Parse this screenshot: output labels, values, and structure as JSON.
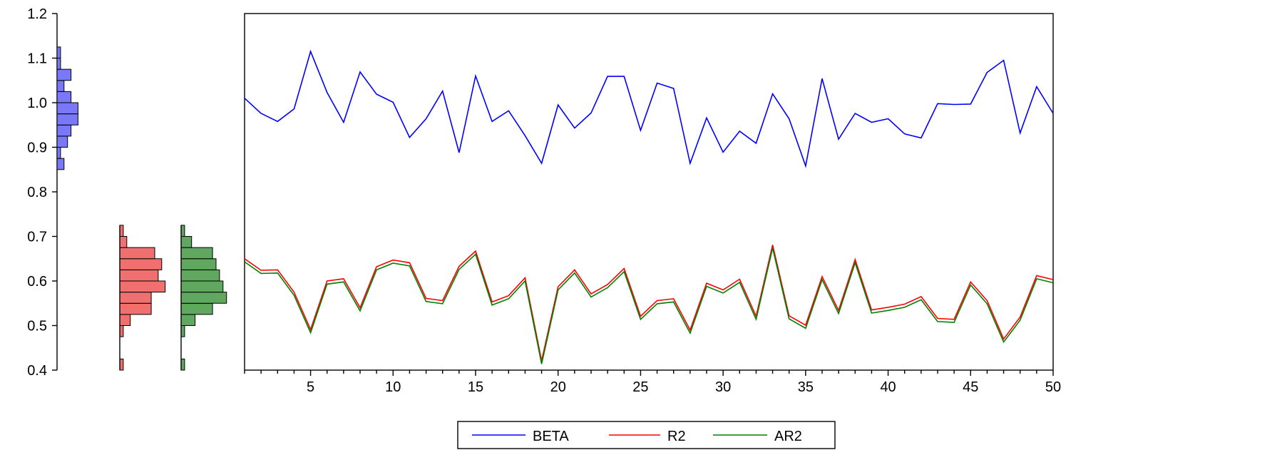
{
  "chart_data": {
    "type": "line",
    "x": [
      1,
      2,
      3,
      4,
      5,
      6,
      7,
      8,
      9,
      10,
      11,
      12,
      13,
      14,
      15,
      16,
      17,
      18,
      19,
      20,
      21,
      22,
      23,
      24,
      25,
      26,
      27,
      28,
      29,
      30,
      31,
      32,
      33,
      34,
      35,
      36,
      37,
      38,
      39,
      40,
      41,
      42,
      43,
      44,
      45,
      46,
      47,
      48,
      49,
      50
    ],
    "xticks": [
      5,
      10,
      15,
      20,
      25,
      30,
      35,
      40,
      45,
      50
    ],
    "xlim": [
      1,
      50
    ],
    "ylim": [
      0.4,
      1.2
    ],
    "yticks": [
      0.4,
      0.5,
      0.6,
      0.7,
      0.8,
      0.9,
      1.0,
      1.1,
      1.2
    ],
    "ytick_labels": [
      "0.4",
      "0.5",
      "0.6",
      "0.7",
      "0.8",
      "0.9",
      "1.0",
      "1.1",
      "1.2"
    ],
    "grid": false,
    "legend_position": "bottom-center",
    "series": [
      {
        "name": "BETA",
        "color": "#0000ff",
        "values": [
          1.01,
          0.976,
          0.958,
          0.986,
          1.115,
          1.023,
          0.956,
          1.069,
          1.019,
          1.001,
          0.922,
          0.964,
          1.026,
          0.888,
          1.06,
          0.958,
          0.982,
          0.926,
          0.864,
          0.995,
          0.943,
          0.977,
          1.059,
          1.059,
          0.938,
          1.044,
          1.032,
          0.864,
          0.966,
          0.889,
          0.936,
          0.909,
          1.02,
          0.964,
          0.858,
          1.054,
          0.918,
          0.976,
          0.956,
          0.964,
          0.93,
          0.921,
          0.998,
          0.996,
          0.997,
          1.068,
          1.095,
          0.932,
          1.036,
          0.976
        ]
      },
      {
        "name": "R2",
        "color": "#ff0000",
        "values": [
          0.65,
          0.624,
          0.625,
          0.575,
          0.491,
          0.6,
          0.605,
          0.54,
          0.632,
          0.647,
          0.641,
          0.561,
          0.556,
          0.633,
          0.667,
          0.553,
          0.567,
          0.607,
          0.421,
          0.587,
          0.625,
          0.571,
          0.592,
          0.628,
          0.521,
          0.556,
          0.56,
          0.49,
          0.595,
          0.58,
          0.604,
          0.521,
          0.681,
          0.522,
          0.501,
          0.61,
          0.534,
          0.648,
          0.535,
          0.541,
          0.548,
          0.565,
          0.516,
          0.514,
          0.598,
          0.556,
          0.47,
          0.519,
          0.612,
          0.603
        ]
      },
      {
        "name": "AR2",
        "color": "#008000",
        "values": [
          0.643,
          0.617,
          0.618,
          0.568,
          0.484,
          0.593,
          0.598,
          0.533,
          0.625,
          0.64,
          0.634,
          0.554,
          0.549,
          0.626,
          0.66,
          0.546,
          0.56,
          0.6,
          0.414,
          0.58,
          0.618,
          0.564,
          0.585,
          0.621,
          0.514,
          0.549,
          0.553,
          0.483,
          0.588,
          0.573,
          0.597,
          0.514,
          0.674,
          0.515,
          0.494,
          0.603,
          0.527,
          0.641,
          0.528,
          0.534,
          0.541,
          0.558,
          0.509,
          0.507,
          0.591,
          0.549,
          0.463,
          0.512,
          0.605,
          0.596
        ]
      }
    ],
    "histograms": [
      {
        "series": "BETA",
        "color": "#7878f8",
        "bin_width": 0.025,
        "bins": [
          {
            "lo": 0.85,
            "count": 2
          },
          {
            "lo": 0.875,
            "count": 1
          },
          {
            "lo": 0.9,
            "count": 3
          },
          {
            "lo": 0.925,
            "count": 4
          },
          {
            "lo": 0.95,
            "count": 6
          },
          {
            "lo": 0.975,
            "count": 6
          },
          {
            "lo": 1.0,
            "count": 4
          },
          {
            "lo": 1.025,
            "count": 2
          },
          {
            "lo": 1.05,
            "count": 4
          },
          {
            "lo": 1.075,
            "count": 1
          },
          {
            "lo": 1.1,
            "count": 1
          }
        ]
      },
      {
        "series": "R2",
        "color": "#f07070",
        "bin_width": 0.025,
        "bins": [
          {
            "lo": 0.4,
            "count": 1
          },
          {
            "lo": 0.425,
            "count": 0
          },
          {
            "lo": 0.45,
            "count": 0
          },
          {
            "lo": 0.475,
            "count": 1
          },
          {
            "lo": 0.5,
            "count": 3
          },
          {
            "lo": 0.525,
            "count": 9
          },
          {
            "lo": 0.55,
            "count": 9
          },
          {
            "lo": 0.575,
            "count": 13
          },
          {
            "lo": 0.6,
            "count": 11
          },
          {
            "lo": 0.625,
            "count": 12
          },
          {
            "lo": 0.65,
            "count": 10
          },
          {
            "lo": 0.675,
            "count": 2
          },
          {
            "lo": 0.7,
            "count": 1
          }
        ]
      },
      {
        "series": "AR2",
        "color": "#60a860",
        "bin_width": 0.025,
        "bins": [
          {
            "lo": 0.4,
            "count": 1
          },
          {
            "lo": 0.425,
            "count": 0
          },
          {
            "lo": 0.45,
            "count": 0
          },
          {
            "lo": 0.475,
            "count": 1
          },
          {
            "lo": 0.5,
            "count": 4
          },
          {
            "lo": 0.525,
            "count": 9
          },
          {
            "lo": 0.55,
            "count": 13
          },
          {
            "lo": 0.575,
            "count": 12
          },
          {
            "lo": 0.6,
            "count": 11
          },
          {
            "lo": 0.625,
            "count": 10
          },
          {
            "lo": 0.65,
            "count": 9
          },
          {
            "lo": 0.675,
            "count": 3
          },
          {
            "lo": 0.7,
            "count": 1
          }
        ]
      }
    ]
  }
}
